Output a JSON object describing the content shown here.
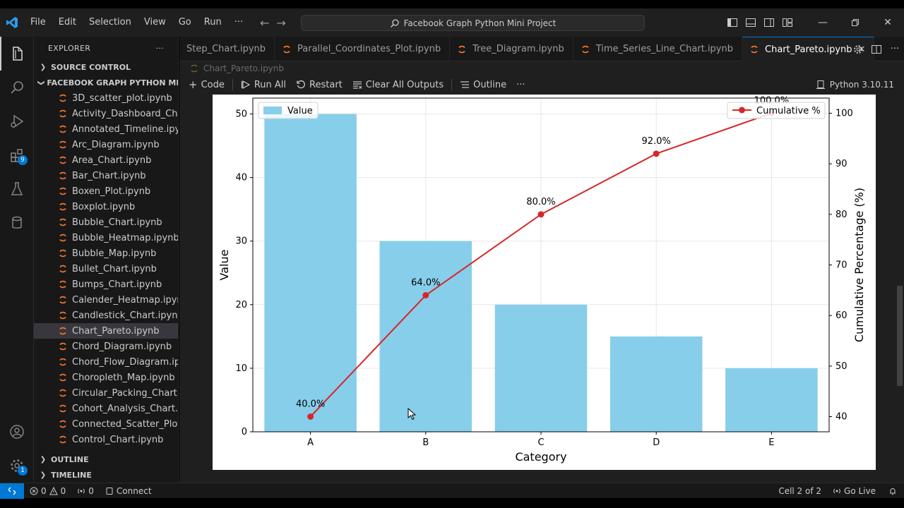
{
  "titlebar": {
    "menu": [
      "File",
      "Edit",
      "Selection",
      "View",
      "Go",
      "Run"
    ],
    "more": "···",
    "search": "Facebook Graph Python Mini Project"
  },
  "sidebar": {
    "title": "EXPLORER",
    "more": "···",
    "source_control": "SOURCE CONTROL",
    "folder": "FACEBOOK GRAPH PYTHON MI...",
    "files": [
      "3D_scatter_plot.ipynb",
      "Activity_Dashboard_Ch...",
      "Annotated_Timeline.ipy...",
      "Arc_Diagram.ipynb",
      "Area_Chart.ipynb",
      "Bar_Chart.ipynb",
      "Boxen_Plot.ipynb",
      "Boxplot.ipynb",
      "Bubble_Chart.ipynb",
      "Bubble_Heatmap.ipynb",
      "Bubble_Map.ipynb",
      "Bullet_Chart.ipynb",
      "Bumps_Chart.ipynb",
      "Calender_Heatmap.ipynb",
      "Candlestick_Chart.ipynb",
      "Chart_Pareto.ipynb",
      "Chord_Diagram.ipynb",
      "Chord_Flow_Diagram.ip...",
      "Choropleth_Map.ipynb",
      "Circular_Packing_Chart.i...",
      "Cohort_Analysis_Chart.i...",
      "Connected_Scatter_Plot...",
      "Control_Chart.ipynb"
    ],
    "selected_index": 15,
    "outline": "OUTLINE",
    "timeline": "TIMELINE"
  },
  "activity": {
    "extensions_badge": "9",
    "settings_badge": "1"
  },
  "tabs": [
    {
      "label": "Step_Chart.ipynb",
      "icon": false
    },
    {
      "label": "Parallel_Coordinates_Plot.ipynb",
      "icon": true
    },
    {
      "label": "Tree_Diagram.ipynb",
      "icon": true
    },
    {
      "label": "Time_Series_Line_Chart.ipynb",
      "icon": true
    },
    {
      "label": "Chart_Pareto.ipynb",
      "icon": true,
      "active": true
    }
  ],
  "breadcrumb": "Chart_Pareto.ipynb",
  "toolbar": {
    "code": "Code",
    "run_all": "Run All",
    "restart": "Restart",
    "clear_outputs": "Clear All Outputs",
    "outline": "Outline",
    "more": "···",
    "kernel": "Python 3.10.11"
  },
  "statusbar": {
    "errors": "0",
    "warnings": "0",
    "ports": "0",
    "connect": "Connect",
    "cell": "Cell 2 of 2",
    "go_live": "Go Live"
  },
  "colors": {
    "bar": "#87ceeb",
    "line": "#d62728",
    "accent": "#0078d4"
  },
  "chart_data": {
    "type": "bar",
    "categories": [
      "A",
      "B",
      "C",
      "D",
      "E"
    ],
    "values": [
      50,
      30,
      20,
      15,
      10
    ],
    "cumulative": [
      40.0,
      64.0,
      80.0,
      92.0,
      100.0
    ],
    "cumulative_labels": [
      "40.0%",
      "64.0%",
      "80.0%",
      "92.0%",
      "100.0%"
    ],
    "series": [
      {
        "name": "Value",
        "values": [
          50,
          30,
          20,
          15,
          10
        ]
      },
      {
        "name": "Cumulative %",
        "values": [
          40.0,
          64.0,
          80.0,
          92.0,
          100.0
        ]
      }
    ],
    "xlabel": "Category",
    "ylabel": "Value",
    "y2label": "Cumulative Percentage (%)",
    "ylim": [
      0,
      52.5
    ],
    "y2lim": [
      37,
      103
    ],
    "yticks": [
      0,
      10,
      20,
      30,
      40,
      50
    ],
    "y2ticks": [
      40,
      50,
      60,
      70,
      80,
      90,
      100
    ],
    "grid": true,
    "legend_left": "top-left",
    "legend_right": "top-right"
  }
}
